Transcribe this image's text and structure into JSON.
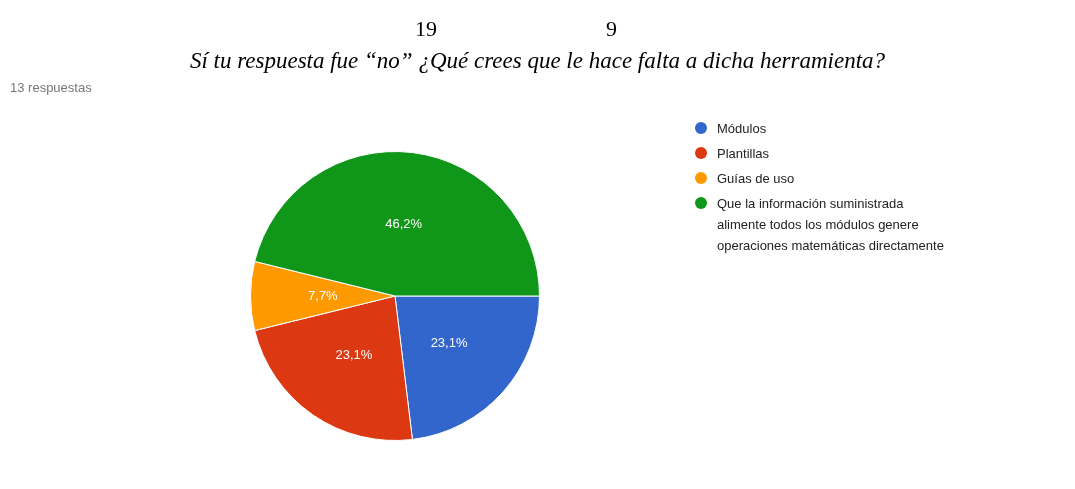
{
  "chart_data": {
    "type": "pie",
    "title": "Sí tu respuesta fue “no” ¿Qué crees que le hace falta a dicha herramienta?",
    "subtitle": "13 respuestas",
    "annotations": [
      "19",
      "9"
    ],
    "categories": [
      "Módulos",
      "Plantillas",
      "Guías de uso",
      "Que la información suministrada alimente todos los módulos genere operaciones matemáticas directamente"
    ],
    "values": [
      23.1,
      23.1,
      7.7,
      46.2
    ],
    "value_labels": [
      "23,1%",
      "23,1%",
      "7,7%",
      "46,2%"
    ],
    "colors": [
      "#3366cc",
      "#dc3912",
      "#ff9900",
      "#109618"
    ],
    "legend": "right"
  }
}
